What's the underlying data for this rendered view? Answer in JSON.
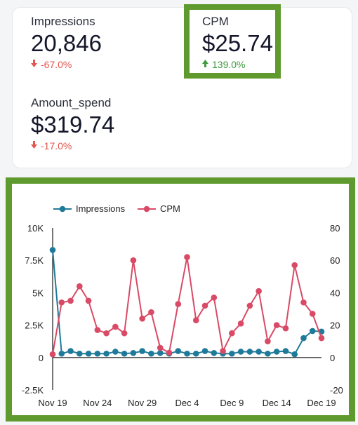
{
  "kpis": {
    "impressions": {
      "label": "Impressions",
      "value": "20,846",
      "change": "-67.0%",
      "direction": "down"
    },
    "cpm": {
      "label": "CPM",
      "value": "$25.74",
      "change": "139.0%",
      "direction": "up"
    },
    "amount_spend": {
      "label": "Amount_spend",
      "value": "$319.74",
      "change": "-17.0%",
      "direction": "down"
    }
  },
  "colors": {
    "impressions": "#1f7a9a",
    "cpm": "#d94a66",
    "highlight": "#5f9a2e",
    "down": "#e3554f",
    "up": "#3e9b3e"
  },
  "icons": {
    "down": "arrow-down-icon",
    "up": "arrow-up-icon"
  },
  "chart_data": {
    "type": "line",
    "legend": [
      "Impressions",
      "CPM"
    ],
    "legend_position": "top-left",
    "x_tick_labels": [
      "Nov 19",
      "Nov 24",
      "Nov 29",
      "Dec 4",
      "Dec 9",
      "Dec 14",
      "Dec 19"
    ],
    "y_left_ticks": [
      "10K",
      "7.5K",
      "5K",
      "2.5K",
      "0",
      "-2.5K"
    ],
    "y_right_ticks": [
      "80",
      "60",
      "40",
      "20",
      "0",
      "-20"
    ],
    "y_left_range": [
      -2500,
      10000
    ],
    "y_right_range": [
      -20,
      80
    ],
    "x": [
      "Nov 19",
      "Nov 20",
      "Nov 21",
      "Nov 22",
      "Nov 23",
      "Nov 24",
      "Nov 25",
      "Nov 26",
      "Nov 27",
      "Nov 28",
      "Nov 29",
      "Nov 30",
      "Dec 1",
      "Dec 2",
      "Dec 3",
      "Dec 4",
      "Dec 5",
      "Dec 6",
      "Dec 7",
      "Dec 8",
      "Dec 9",
      "Dec 10",
      "Dec 11",
      "Dec 12",
      "Dec 13",
      "Dec 14",
      "Dec 15",
      "Dec 16",
      "Dec 17",
      "Dec 18",
      "Dec 19"
    ],
    "series": [
      {
        "name": "Impressions",
        "axis": "left",
        "values": [
          8300,
          300,
          500,
          300,
          300,
          300,
          300,
          450,
          300,
          350,
          500,
          300,
          350,
          300,
          500,
          300,
          300,
          500,
          350,
          300,
          300,
          450,
          450,
          450,
          300,
          450,
          500,
          250,
          1500,
          2050,
          2000
        ]
      },
      {
        "name": "CPM",
        "axis": "right",
        "values": [
          2,
          34,
          35,
          44,
          35,
          17,
          15,
          19,
          15,
          60,
          24,
          28,
          6,
          3,
          33,
          62,
          23,
          32,
          37,
          4,
          15,
          21,
          32,
          41,
          10,
          20,
          18,
          57,
          34,
          27,
          12
        ]
      }
    ],
    "grid": false
  }
}
